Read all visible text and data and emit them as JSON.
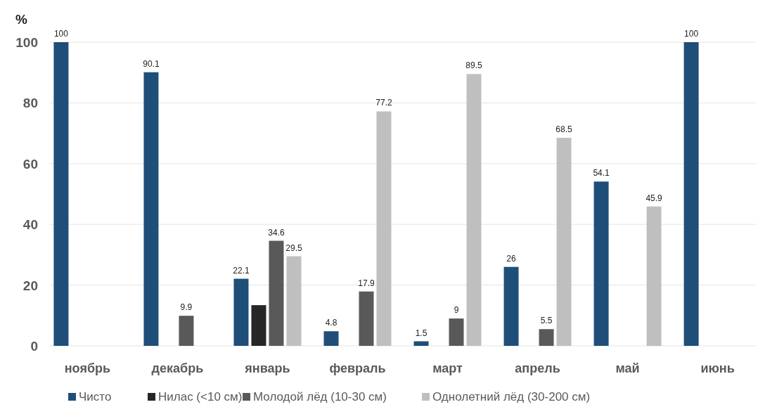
{
  "chart_data": {
    "type": "bar",
    "ylabel": "%",
    "categories": [
      "ноябрь",
      "декабрь",
      "январь",
      "февраль",
      "март",
      "апрель",
      "май",
      "июнь"
    ],
    "series": [
      {
        "name": "Чисто",
        "color": "#1f4e79",
        "values": [
          100,
          90.1,
          22.1,
          4.8,
          1.5,
          26,
          54.1,
          100
        ],
        "value_labels": [
          "100",
          "90.1",
          "22.1",
          "4.8",
          "1.5",
          "26",
          "54.1",
          "100"
        ]
      },
      {
        "name": "Нилас (<10 см)",
        "color": "#262626",
        "values": [
          null,
          null,
          13.4,
          null,
          null,
          null,
          null,
          null
        ],
        "value_labels": [
          null,
          null,
          null,
          null,
          null,
          null,
          null,
          null
        ]
      },
      {
        "name": "Молодой лёд (10-30 см)",
        "color": "#595959",
        "values": [
          null,
          9.9,
          34.6,
          17.9,
          9,
          5.5,
          null,
          null
        ],
        "value_labels": [
          null,
          "9.9",
          "34.6",
          "17.9",
          "9",
          "5.5",
          null,
          null
        ]
      },
      {
        "name": "Однолетний лёд (30-200 см)",
        "color": "#bfbfbf",
        "values": [
          null,
          null,
          29.5,
          77.2,
          89.5,
          68.5,
          45.9,
          null
        ],
        "value_labels": [
          null,
          null,
          "29.5",
          "77.2",
          "89.5",
          "68.5",
          "45.9",
          null
        ]
      }
    ],
    "ylim": [
      0,
      100
    ],
    "yticks": [
      0,
      20,
      40,
      60,
      80,
      100
    ],
    "grid": "y",
    "legend": "bottom"
  }
}
